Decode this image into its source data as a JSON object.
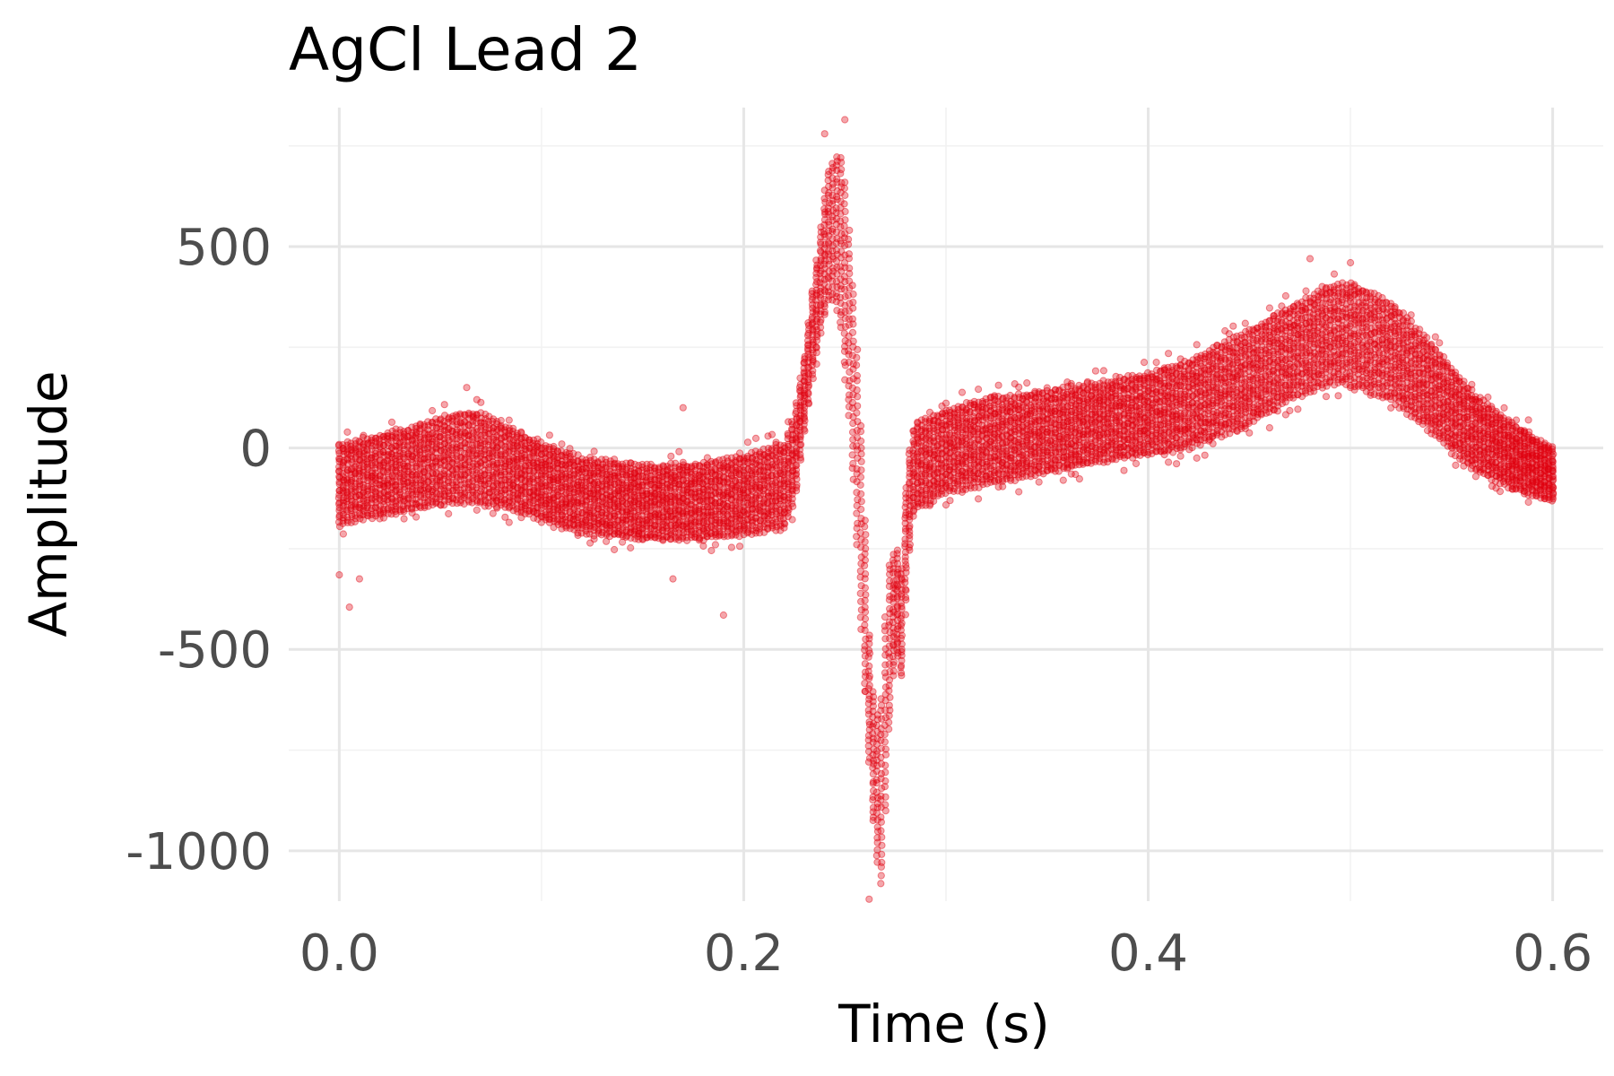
{
  "chart_data": {
    "type": "scatter",
    "title": "AgCl Lead 2",
    "xlabel": "Time (s)",
    "ylabel": "Amplitude",
    "xlim": [
      -0.025,
      0.625
    ],
    "ylim": [
      -1125,
      845
    ],
    "x_ticks": [
      0.0,
      0.2,
      0.4,
      0.6
    ],
    "x_tick_labels": [
      "0.0",
      "0.2",
      "0.4",
      "0.6"
    ],
    "y_ticks": [
      -1000,
      -500,
      0,
      500
    ],
    "y_tick_labels": [
      "-1000",
      "-500",
      "0",
      "500"
    ],
    "grid": true,
    "legend": "none",
    "point_color": "#e0000f",
    "point_alpha": 0.35,
    "x_step": 0.002,
    "x_range": [
      0.0,
      0.6
    ],
    "envelope": {
      "x": [
        0.0,
        0.02,
        0.04,
        0.05,
        0.06,
        0.065,
        0.07,
        0.08,
        0.1,
        0.12,
        0.15,
        0.18,
        0.2,
        0.21,
        0.22,
        0.225,
        0.23,
        0.235,
        0.24,
        0.243,
        0.245,
        0.248,
        0.25,
        0.252,
        0.255,
        0.258,
        0.26,
        0.262,
        0.265,
        0.268,
        0.27,
        0.272,
        0.275,
        0.278,
        0.28,
        0.283,
        0.286,
        0.29,
        0.3,
        0.32,
        0.35,
        0.38,
        0.4,
        0.42,
        0.45,
        0.47,
        0.49,
        0.5,
        0.52,
        0.54,
        0.56,
        0.58,
        0.6
      ],
      "low": [
        -190,
        -165,
        -150,
        -140,
        -135,
        -135,
        -138,
        -145,
        -175,
        -210,
        -225,
        -225,
        -215,
        -205,
        -200,
        -130,
        40,
        210,
        340,
        380,
        360,
        310,
        200,
        80,
        -150,
        -420,
        -600,
        -780,
        -1000,
        -1080,
        -900,
        -700,
        -500,
        -560,
        -380,
        -180,
        -150,
        -140,
        -110,
        -90,
        -60,
        -30,
        -15,
        0,
        60,
        120,
        160,
        160,
        120,
        40,
        -50,
        -100,
        -130
      ],
      "high": [
        10,
        30,
        55,
        75,
        85,
        90,
        85,
        60,
        10,
        -25,
        -45,
        -40,
        -20,
        -5,
        10,
        80,
        230,
        430,
        620,
        700,
        720,
        710,
        640,
        540,
        330,
        60,
        -200,
        -460,
        -680,
        -620,
        -420,
        -300,
        -250,
        -300,
        -100,
        40,
        60,
        70,
        95,
        120,
        140,
        165,
        185,
        215,
        290,
        350,
        400,
        410,
        360,
        260,
        140,
        60,
        0
      ]
    },
    "outliers": [
      [
        0.0,
        -315
      ],
      [
        0.005,
        -395
      ],
      [
        0.01,
        -325
      ],
      [
        0.063,
        150
      ],
      [
        0.068,
        120
      ],
      [
        0.17,
        100
      ],
      [
        0.165,
        -325
      ],
      [
        0.19,
        -415
      ],
      [
        0.24,
        780
      ],
      [
        0.25,
        815
      ],
      [
        0.262,
        -1120
      ],
      [
        0.275,
        -350
      ],
      [
        0.48,
        470
      ],
      [
        0.5,
        460
      ],
      [
        0.46,
        50
      ],
      [
        0.58,
        -40
      ]
    ]
  }
}
